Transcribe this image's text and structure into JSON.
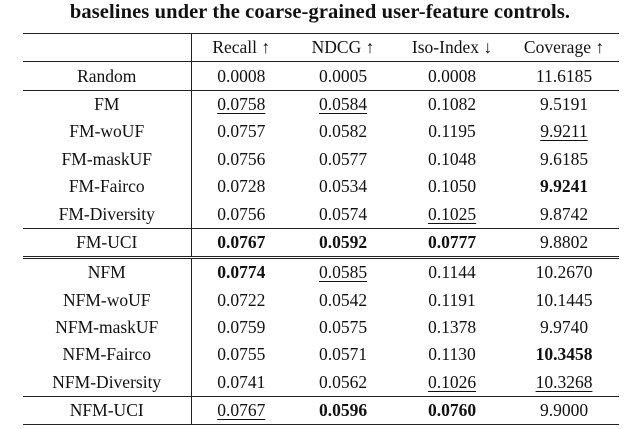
{
  "caption": "baselines under the coarse-grained user-feature controls.",
  "columns": [
    "",
    "Recall ↑",
    "NDCG ↑",
    "Iso-Index ↓",
    "Coverage ↑"
  ],
  "rows": [
    {
      "method": "Random",
      "values": [
        "0.0008",
        "0.0005",
        "0.0008",
        "11.6185"
      ],
      "style": [
        "",
        "",
        "",
        ""
      ]
    },
    {
      "method": "FM",
      "values": [
        "0.0758",
        "0.0584",
        "0.1082",
        "9.5191"
      ],
      "style": [
        "u",
        "u",
        "",
        ""
      ]
    },
    {
      "method": "FM-woUF",
      "values": [
        "0.0757",
        "0.0582",
        "0.1195",
        "9.9211"
      ],
      "style": [
        "",
        "",
        "",
        "u"
      ]
    },
    {
      "method": "FM-maskUF",
      "values": [
        "0.0756",
        "0.0577",
        "0.1048",
        "9.6185"
      ],
      "style": [
        "",
        "",
        "",
        ""
      ]
    },
    {
      "method": "FM-Fairco",
      "values": [
        "0.0728",
        "0.0534",
        "0.1050",
        "9.9241"
      ],
      "style": [
        "",
        "",
        "",
        "b"
      ]
    },
    {
      "method": "FM-Diversity",
      "values": [
        "0.0756",
        "0.0574",
        "0.1025",
        "9.8742"
      ],
      "style": [
        "",
        "",
        "u",
        ""
      ]
    },
    {
      "method": "FM-UCI",
      "values": [
        "0.0767",
        "0.0592",
        "0.0777",
        "9.8802"
      ],
      "style": [
        "b",
        "b",
        "b",
        ""
      ]
    },
    {
      "method": "NFM",
      "values": [
        "0.0774",
        "0.0585",
        "0.1144",
        "10.2670"
      ],
      "style": [
        "b",
        "u",
        "",
        ""
      ]
    },
    {
      "method": "NFM-woUF",
      "values": [
        "0.0722",
        "0.0542",
        "0.1191",
        "10.1445"
      ],
      "style": [
        "",
        "",
        "",
        ""
      ]
    },
    {
      "method": "NFM-maskUF",
      "values": [
        "0.0759",
        "0.0575",
        "0.1378",
        "9.9740"
      ],
      "style": [
        "",
        "",
        "",
        ""
      ]
    },
    {
      "method": "NFM-Fairco",
      "values": [
        "0.0755",
        "0.0571",
        "0.1130",
        "10.3458"
      ],
      "style": [
        "",
        "",
        "",
        "b"
      ]
    },
    {
      "method": "NFM-Diversity",
      "values": [
        "0.0741",
        "0.0562",
        "0.1026",
        "10.3268"
      ],
      "style": [
        "",
        "",
        "u",
        "u"
      ]
    },
    {
      "method": "NFM-UCI",
      "values": [
        "0.0767",
        "0.0596",
        "0.0760",
        "9.9000"
      ],
      "style": [
        "u",
        "b",
        "b",
        ""
      ]
    }
  ]
}
